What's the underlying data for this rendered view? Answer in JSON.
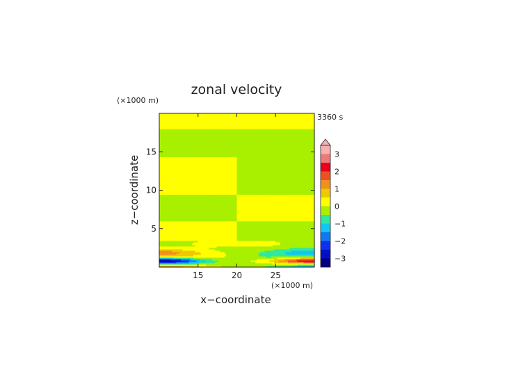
{
  "chart_data": {
    "type": "heatmap",
    "title": "zonal velocity",
    "xlabel": "x−coordinate",
    "ylabel": "z−coordinate",
    "x_unit": "(×1000 m)",
    "y_unit": "(×1000 m)",
    "time_label": "3360 s",
    "xlim": [
      10,
      30
    ],
    "ylim": [
      0,
      20
    ],
    "x_ticks": [
      "15",
      "20",
      "25"
    ],
    "y_ticks": [
      "5",
      "10",
      "15"
    ],
    "colorbar": {
      "labels": [
        "3",
        "2",
        "1",
        "0",
        "−1",
        "−2",
        "−3"
      ],
      "levels": [
        3.5,
        3.0,
        2.5,
        2.0,
        1.5,
        1.0,
        0.5,
        0.0,
        -0.5,
        -1.0,
        -1.5,
        -2.0,
        -2.5,
        -3.0,
        -3.5
      ],
      "colors": [
        "#f6b0b0",
        "#f07878",
        "#e8001c",
        "#f05020",
        "#f09020",
        "#f0c800",
        "#ffff00",
        "#a8f000",
        "#30e8a0",
        "#10c8f0",
        "#1078f0",
        "#1030f0",
        "#0010c8",
        "#000080"
      ],
      "extend": "max"
    },
    "bands": [
      {
        "z": [
          18.0,
          20.0
        ],
        "left": 0.3,
        "right": 0.3
      },
      {
        "z": [
          14.3,
          18.0
        ],
        "left": -0.2,
        "right": -0.2
      },
      {
        "z": [
          9.5,
          14.3
        ],
        "left": 0.3,
        "right": -0.2
      },
      {
        "z": [
          6.0,
          9.5
        ],
        "left": -0.2,
        "right": 0.3
      },
      {
        "z": [
          3.5,
          6.0
        ],
        "left": 0.3,
        "right": -0.2
      },
      {
        "z": [
          2.6,
          3.5
        ],
        "left": -0.2,
        "right": -0.2
      },
      {
        "z": [
          0.0,
          2.6
        ],
        "left": -0.2,
        "right": -0.2
      }
    ],
    "surface_jets": {
      "left": {
        "x": [
          10,
          17
        ],
        "z": [
          0.4,
          1.6
        ],
        "min": -3.2,
        "upper_max": 1.6
      },
      "right": {
        "x": [
          23,
          30
        ],
        "z": [
          0.4,
          1.6
        ],
        "max": 2.7,
        "upper_min": -1.3
      }
    }
  }
}
